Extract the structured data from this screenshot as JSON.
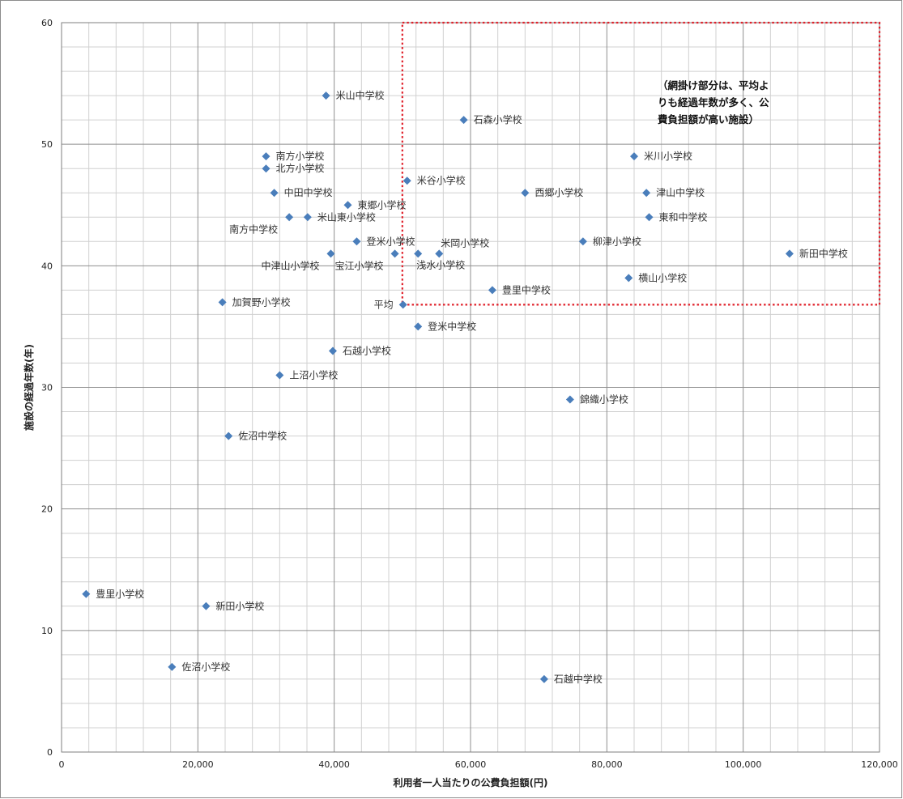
{
  "chart_data": {
    "type": "scatter",
    "xlabel": "利用者一人当たりの公費負担額(円)",
    "ylabel": "施設の経過年数(年)",
    "xlim": [
      0,
      120000
    ],
    "ylim": [
      0,
      60
    ],
    "x_major_step": 20000,
    "y_major_step": 10,
    "x_tick_labels": [
      "0",
      "20,000",
      "40,000",
      "60,000",
      "80,000",
      "100,000",
      "120,000"
    ],
    "y_tick_labels": [
      "0",
      "10",
      "20",
      "30",
      "40",
      "50",
      "60"
    ],
    "grid": true,
    "marker_color": "#4a7ebb",
    "highlight_box_color": "#e0202a",
    "highlight_region": {
      "x_from": 50000,
      "x_to": 120000,
      "y_from": 36.8,
      "y_to": 60
    },
    "annotation": [
      "（網掛け部分は、平均よ",
      "りも経過年数が多く、公",
      "費負担額が高い施設）"
    ],
    "points": [
      {
        "label": "米山中学校",
        "x": 38800,
        "y": 54,
        "pos": "right"
      },
      {
        "label": "石森小学校",
        "x": 59000,
        "y": 52,
        "pos": "right"
      },
      {
        "label": "南方小学校",
        "x": 30000,
        "y": 49,
        "pos": "right"
      },
      {
        "label": "米川小学校",
        "x": 84000,
        "y": 49,
        "pos": "right"
      },
      {
        "label": "北方小学校",
        "x": 30000,
        "y": 48,
        "pos": "right"
      },
      {
        "label": "米谷小学校",
        "x": 50700,
        "y": 47,
        "pos": "right"
      },
      {
        "label": "中田中学校",
        "x": 31200,
        "y": 46,
        "pos": "right"
      },
      {
        "label": "西郷小学校",
        "x": 68000,
        "y": 46,
        "pos": "right"
      },
      {
        "label": "津山中学校",
        "x": 85800,
        "y": 46,
        "pos": "right"
      },
      {
        "label": "東郷小学校",
        "x": 42000,
        "y": 45,
        "pos": "right"
      },
      {
        "label": "南方中学校",
        "x": 33400,
        "y": 44,
        "pos": "below-left"
      },
      {
        "label": "米山東小学校",
        "x": 36100,
        "y": 44,
        "pos": "right"
      },
      {
        "label": "東和中学校",
        "x": 86200,
        "y": 44,
        "pos": "right"
      },
      {
        "label": "登米小学校",
        "x": 43300,
        "y": 42,
        "pos": "right"
      },
      {
        "label": "米岡小学校",
        "x": 55400,
        "y": 41,
        "pos": "above-right"
      },
      {
        "label": "柳津小学校",
        "x": 76500,
        "y": 42,
        "pos": "right"
      },
      {
        "label": "中津山小学校",
        "x": 39500,
        "y": 41,
        "pos": "below-left"
      },
      {
        "label": "宝江小学校",
        "x": 48900,
        "y": 41,
        "pos": "below-left"
      },
      {
        "label": "浅水小学校",
        "x": 52300,
        "y": 41,
        "pos": "below-right"
      },
      {
        "label": "新田中学校",
        "x": 106800,
        "y": 41,
        "pos": "right"
      },
      {
        "label": "横山小学校",
        "x": 83200,
        "y": 39,
        "pos": "right"
      },
      {
        "label": "豊里中学校",
        "x": 63200,
        "y": 38,
        "pos": "right"
      },
      {
        "label": "平均",
        "x": 50100,
        "y": 36.8,
        "pos": "left"
      },
      {
        "label": "加賀野小学校",
        "x": 23600,
        "y": 37,
        "pos": "right"
      },
      {
        "label": "登米中学校",
        "x": 52300,
        "y": 35,
        "pos": "right"
      },
      {
        "label": "石越小学校",
        "x": 39800,
        "y": 33,
        "pos": "right"
      },
      {
        "label": "上沼小学校",
        "x": 32000,
        "y": 31,
        "pos": "right"
      },
      {
        "label": "錦織小学校",
        "x": 74600,
        "y": 29,
        "pos": "right"
      },
      {
        "label": "佐沼中学校",
        "x": 24500,
        "y": 26,
        "pos": "right"
      },
      {
        "label": "豊里小学校",
        "x": 3600,
        "y": 13,
        "pos": "right"
      },
      {
        "label": "新田小学校",
        "x": 21200,
        "y": 12,
        "pos": "right"
      },
      {
        "label": "佐沼小学校",
        "x": 16200,
        "y": 7,
        "pos": "right"
      },
      {
        "label": "石越中学校",
        "x": 70800,
        "y": 6,
        "pos": "right"
      }
    ]
  }
}
